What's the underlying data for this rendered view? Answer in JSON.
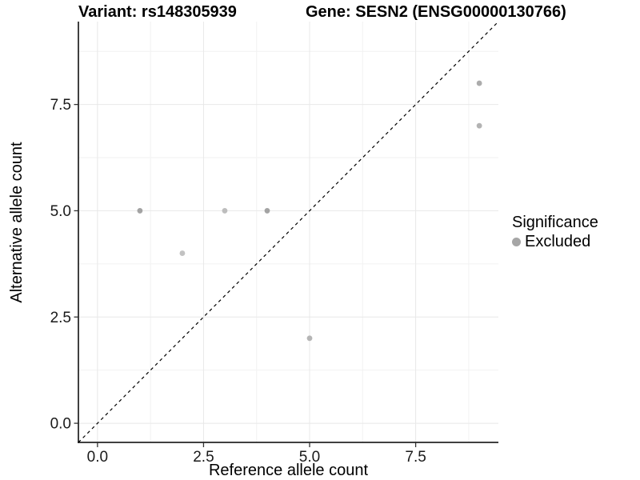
{
  "window": {
    "background": "#ffffff"
  },
  "chart_data": {
    "type": "scatter",
    "titles": {
      "left": "Variant: rs148305939",
      "right": "Gene: SESN2 (ENSG00000130766)"
    },
    "xlabel": "Reference allele count",
    "ylabel": "Alternative allele count",
    "xlim": [
      -0.45,
      9.45
    ],
    "ylim": [
      -0.45,
      9.45
    ],
    "x_ticks": {
      "values": [
        0,
        2.5,
        5,
        7.5
      ],
      "labels": [
        "0.0",
        "2.5",
        "5.0",
        "7.5"
      ]
    },
    "y_ticks": {
      "values": [
        0,
        2.5,
        5,
        7.5
      ],
      "labels": [
        "0.0",
        "2.5",
        "5.0",
        "7.5"
      ]
    },
    "minor_breaks": [
      1.25,
      3.75,
      6.25,
      8.75
    ],
    "grid": true,
    "legend_position": "right",
    "points": [
      {
        "x": 1,
        "y": 5,
        "color": "#a3a3a3"
      },
      {
        "x": 2,
        "y": 4,
        "color": "#c2c2c2"
      },
      {
        "x": 3,
        "y": 5,
        "color": "#bdbdbd"
      },
      {
        "x": 4,
        "y": 5,
        "color": "#a3a3a3"
      },
      {
        "x": 5,
        "y": 2,
        "color": "#b5b5b5"
      },
      {
        "x": 9,
        "y": 8,
        "color": "#acacac"
      },
      {
        "x": 9,
        "y": 7,
        "color": "#b3b3b3"
      }
    ],
    "identity_line": {
      "style": "dashed",
      "slope": 1,
      "intercept": 0,
      "color": "#000000"
    },
    "legend": {
      "title": "Significance",
      "items": [
        {
          "label": "Excluded",
          "color": "#a6a6a6"
        }
      ]
    },
    "colors": {
      "grid_major": "#e8e8e8",
      "grid_minor": "#f2f2f2",
      "axis_line": "#000000",
      "tick_mark": "#333333",
      "tick_label": "#1a1a1a",
      "title_text": "#000000"
    }
  }
}
